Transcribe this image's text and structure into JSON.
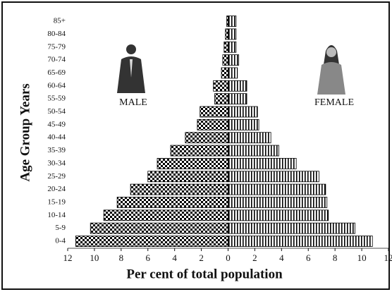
{
  "chart_data": {
    "type": "pyramid",
    "x_label": "Per cent of total population",
    "y_label": "Age Group Years",
    "categories": [
      "0-4",
      "5-9",
      "10-14",
      "15-19",
      "20-24",
      "25-29",
      "30-34",
      "35-39",
      "40-44",
      "45-49",
      "50-54",
      "55-59",
      "60-64",
      "65-69",
      "70-74",
      "75-79",
      "80-84",
      "85+"
    ],
    "series": [
      {
        "name": "MALE",
        "color": "#000000",
        "values": [
          11.4,
          10.3,
          9.3,
          8.3,
          7.3,
          6.0,
          5.3,
          4.3,
          3.2,
          2.3,
          2.1,
          1.0,
          1.1,
          0.5,
          0.4,
          0.3,
          0.2,
          0.1
        ]
      },
      {
        "name": "FEMALE",
        "color": "#000000",
        "values": [
          10.8,
          9.5,
          7.5,
          7.4,
          7.3,
          6.8,
          5.1,
          3.8,
          3.2,
          2.3,
          2.2,
          1.4,
          1.4,
          0.7,
          0.8,
          0.6,
          0.6,
          0.6
        ]
      }
    ],
    "xlim": [
      -12,
      12
    ],
    "xticks": [
      {
        "value": -12,
        "label": "12"
      },
      {
        "value": -10,
        "label": "10"
      },
      {
        "value": -8,
        "label": "8"
      },
      {
        "value": -6,
        "label": "6"
      },
      {
        "value": -4,
        "label": "4"
      },
      {
        "value": -2,
        "label": "2"
      },
      0,
      2,
      4,
      6,
      8,
      10,
      12
    ]
  }
}
